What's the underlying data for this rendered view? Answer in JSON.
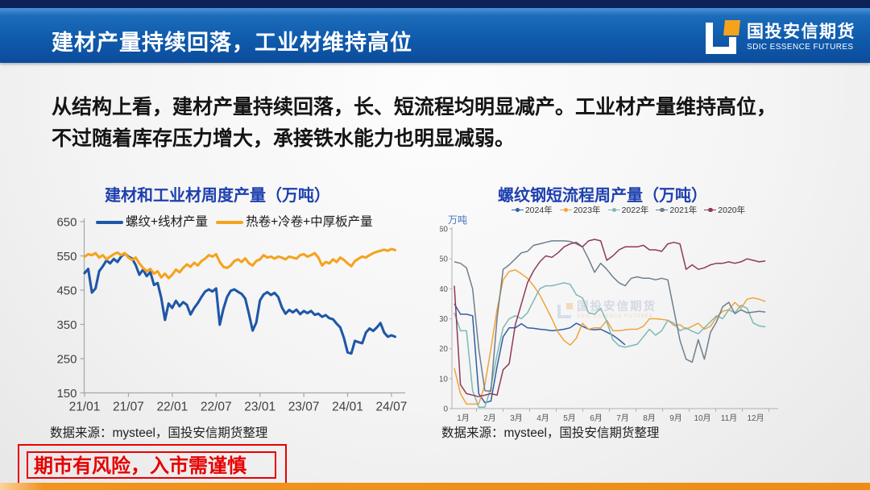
{
  "header": {
    "title": "建材产量持续回落，工业材维持高位",
    "logo": {
      "cn": "国投安信期货",
      "en": "SDIC ESSENCE FUTURES"
    }
  },
  "body_text": {
    "line1": "从结构上看，建材产量持续回落，长、短流程均明显减产。工业材产量维持高位，",
    "line2": "不过随着库存压力增大，承接铁水能力也明显减弱。"
  },
  "chart_data": [
    {
      "type": "line",
      "title": "建材和工业材周度产量（万吨）",
      "xlabel": "",
      "ylabel": "",
      "x_tick_labels": [
        "21/01",
        "21/07",
        "22/01",
        "22/07",
        "23/01",
        "23/07",
        "24/01",
        "24/07"
      ],
      "x_unit": "half-month steps from 2021-01 to 2024-07",
      "ylim": [
        150,
        650
      ],
      "yticks": [
        150,
        250,
        350,
        450,
        550,
        650
      ],
      "grid": false,
      "legend_position": "top",
      "series": [
        {
          "name": "螺纹+线材产量",
          "color": "#1f57a8",
          "values": [
            500,
            512,
            443,
            455,
            505,
            520,
            537,
            528,
            541,
            532,
            548,
            557,
            548,
            542,
            523,
            495,
            510,
            491,
            503,
            465,
            471,
            427,
            363,
            411,
            398,
            419,
            403,
            415,
            407,
            379,
            398,
            412,
            430,
            446,
            452,
            446,
            455,
            349,
            395,
            430,
            448,
            452,
            445,
            439,
            425,
            380,
            332,
            355,
            420,
            437,
            444,
            436,
            442,
            430,
            400,
            381,
            392,
            385,
            393,
            380,
            389,
            383,
            389,
            378,
            381,
            372,
            377,
            368,
            365,
            352,
            341,
            310,
            268,
            265,
            302,
            298,
            295,
            326,
            338,
            331,
            341,
            354,
            326,
            314,
            318,
            314
          ]
        },
        {
          "name": "热卷+冷卷+中厚板产量",
          "color": "#f5a31e",
          "values": [
            548,
            555,
            552,
            558,
            545,
            552,
            540,
            548,
            555,
            560,
            552,
            558,
            545,
            538,
            545,
            528,
            515,
            505,
            512,
            498,
            505,
            487,
            498,
            485,
            495,
            510,
            502,
            515,
            525,
            518,
            530,
            522,
            535,
            542,
            552,
            548,
            555,
            532,
            518,
            515,
            522,
            535,
            540,
            532,
            543,
            528,
            522,
            535,
            540,
            552,
            545,
            548,
            542,
            548,
            545,
            540,
            548,
            545,
            542,
            552,
            555,
            548,
            552,
            558,
            545,
            522,
            532,
            528,
            540,
            532,
            545,
            538,
            528,
            520,
            535,
            542,
            548,
            545,
            552,
            558,
            562,
            565,
            568,
            565,
            570,
            567
          ]
        }
      ]
    },
    {
      "type": "line",
      "title": "螺纹钢短流程周产量（万吨）",
      "y_axis_label": "万吨",
      "x_tick_labels": [
        "1月",
        "2月",
        "3月",
        "4月",
        "5月",
        "6月",
        "7月",
        "8月",
        "9月",
        "10月",
        "11月",
        "12月"
      ],
      "x_unit": "weekly, weeks 1-52",
      "ylim": [
        0,
        60
      ],
      "yticks": [
        0,
        10,
        20,
        30,
        40,
        50,
        60
      ],
      "grid": false,
      "legend_position": "top",
      "series": [
        {
          "name": "2024年",
          "color": "#2e5fa3",
          "values": [
            35,
            31.5,
            31.5,
            31,
            5,
            2,
            2.5,
            14,
            24,
            27,
            27,
            28.3,
            27,
            26.8,
            26.5,
            26.3,
            26,
            26.2,
            26.5,
            27,
            28.5,
            27.5,
            26.5,
            26.3,
            26.5,
            25.5,
            24.5,
            23,
            21.3
          ]
        },
        {
          "name": "2023年",
          "color": "#f2a33a",
          "values": [
            13.5,
            5,
            1.5,
            1.5,
            1.5,
            8,
            20,
            33,
            43,
            45.8,
            46.3,
            45,
            43.5,
            41,
            38,
            34,
            30,
            25.5,
            22.7,
            21.2,
            23.5,
            28.5,
            26.5,
            27,
            27,
            29.5,
            26,
            26,
            26.3,
            26.5,
            26.5,
            27.5,
            30,
            30,
            29.8,
            29.5,
            27.8,
            28,
            26.5,
            27.5,
            28.5,
            26.5,
            27.5,
            30.5,
            32.5,
            33,
            35.5,
            33.5,
            36.5,
            37,
            36.5,
            35.8
          ]
        },
        {
          "name": "2022年",
          "color": "#7db8b5",
          "values": [
            32,
            26,
            26,
            6,
            0.5,
            0.5,
            7,
            18,
            27,
            30,
            31,
            30,
            32,
            36,
            40,
            41,
            41,
            41.5,
            42,
            41.5,
            38,
            37,
            32,
            31.5,
            33.5,
            29,
            23,
            21,
            20.5,
            21,
            21.5,
            24,
            26.5,
            24.5,
            26,
            29.5,
            28.5,
            26,
            27,
            25.8,
            25,
            27,
            29,
            31,
            30,
            33,
            32,
            34.5,
            33.5,
            28.6,
            27.6,
            27.3
          ]
        },
        {
          "name": "2021年",
          "color": "#6e7f8d",
          "values": [
            49,
            48.5,
            47,
            40,
            20,
            6,
            5.8,
            30,
            46.5,
            48,
            50,
            52,
            52.5,
            54.5,
            55,
            55.5,
            56,
            56,
            56,
            55.8,
            55,
            54,
            50,
            45.5,
            48.5,
            46.5,
            44,
            42,
            41,
            43.5,
            44,
            43.5,
            43.5,
            43,
            43.5,
            43,
            33,
            22.8,
            16.5,
            15.5,
            23,
            16.5,
            25.5,
            29,
            34,
            35.5,
            31.7,
            33,
            32,
            32.2,
            32.5,
            32.2
          ]
        },
        {
          "name": "2020年",
          "color": "#8e3a59",
          "values": [
            41,
            8,
            5,
            4.5,
            4,
            4.5,
            5,
            4.5,
            13,
            15,
            28,
            35,
            42,
            46,
            49,
            51,
            50.5,
            52,
            54,
            55,
            55.5,
            54,
            56,
            56.5,
            56,
            49.5,
            51,
            53,
            54,
            54,
            54,
            54.5,
            53,
            53,
            52.5,
            55,
            55.5,
            55,
            46.5,
            48,
            46.5,
            47,
            48,
            48.5,
            48.5,
            49,
            48.5,
            49,
            50,
            49.5,
            49,
            49.3
          ]
        }
      ]
    }
  ],
  "sources": {
    "left": "数据来源：mysteel，国投安信期货整理",
    "right": "数据来源：mysteel，国投安信期货整理"
  },
  "disclaimer": {
    "text": "期市有风险，入市需谨慎"
  },
  "watermark": {
    "cn": "国投安信期货",
    "en": "SDIC ESSENCE FUTURES"
  }
}
